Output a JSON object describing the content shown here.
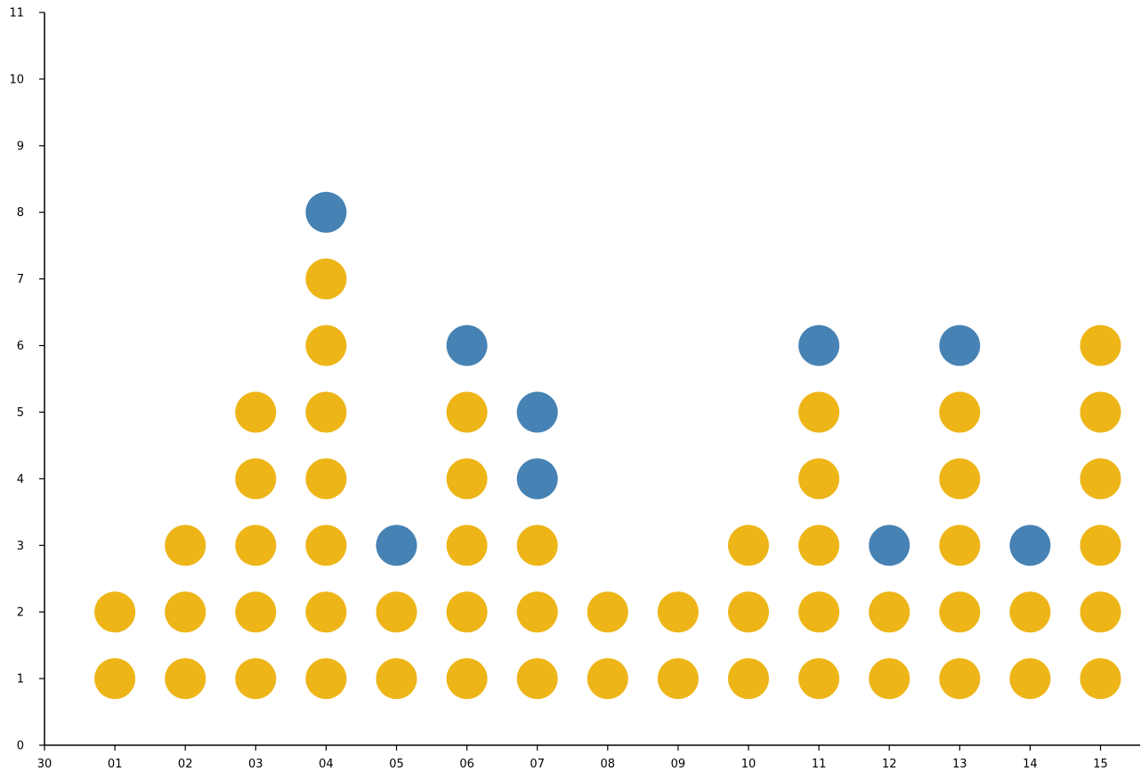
{
  "chart_data": {
    "type": "scatter",
    "title": "",
    "xlabel": "",
    "ylabel": "",
    "x_ticks": [
      "30",
      "01",
      "02",
      "03",
      "04",
      "05",
      "06",
      "07",
      "08",
      "09",
      "10",
      "11",
      "12",
      "13",
      "14",
      "15"
    ],
    "y_ticks": [
      "0",
      "1",
      "2",
      "3",
      "4",
      "5",
      "6",
      "7",
      "8",
      "9",
      "10",
      "11"
    ],
    "ylim": [
      0,
      11
    ],
    "grid": false,
    "colors": {
      "yellow": "#EDB517",
      "blue": "#4682B4"
    },
    "columns": [
      {
        "x": "30",
        "dots": []
      },
      {
        "x": "01",
        "dots": [
          "yellow",
          "yellow"
        ]
      },
      {
        "x": "02",
        "dots": [
          "yellow",
          "yellow",
          "yellow"
        ]
      },
      {
        "x": "03",
        "dots": [
          "yellow",
          "yellow",
          "yellow",
          "yellow",
          "yellow"
        ]
      },
      {
        "x": "04",
        "dots": [
          "yellow",
          "yellow",
          "yellow",
          "yellow",
          "yellow",
          "yellow",
          "yellow",
          "blue"
        ]
      },
      {
        "x": "05",
        "dots": [
          "yellow",
          "yellow",
          "blue"
        ]
      },
      {
        "x": "06",
        "dots": [
          "yellow",
          "yellow",
          "yellow",
          "yellow",
          "yellow",
          "blue"
        ]
      },
      {
        "x": "07",
        "dots": [
          "yellow",
          "yellow",
          "yellow",
          "blue",
          "blue"
        ]
      },
      {
        "x": "08",
        "dots": [
          "yellow",
          "yellow"
        ]
      },
      {
        "x": "09",
        "dots": [
          "yellow",
          "yellow"
        ]
      },
      {
        "x": "10",
        "dots": [
          "yellow",
          "yellow",
          "yellow"
        ]
      },
      {
        "x": "11",
        "dots": [
          "yellow",
          "yellow",
          "yellow",
          "yellow",
          "yellow",
          "blue"
        ]
      },
      {
        "x": "12",
        "dots": [
          "yellow",
          "yellow",
          "blue"
        ]
      },
      {
        "x": "13",
        "dots": [
          "yellow",
          "yellow",
          "yellow",
          "yellow",
          "yellow",
          "blue"
        ]
      },
      {
        "x": "14",
        "dots": [
          "yellow",
          "yellow",
          "blue"
        ]
      },
      {
        "x": "15",
        "dots": [
          "yellow",
          "yellow",
          "yellow",
          "yellow",
          "yellow",
          "yellow"
        ]
      }
    ]
  }
}
